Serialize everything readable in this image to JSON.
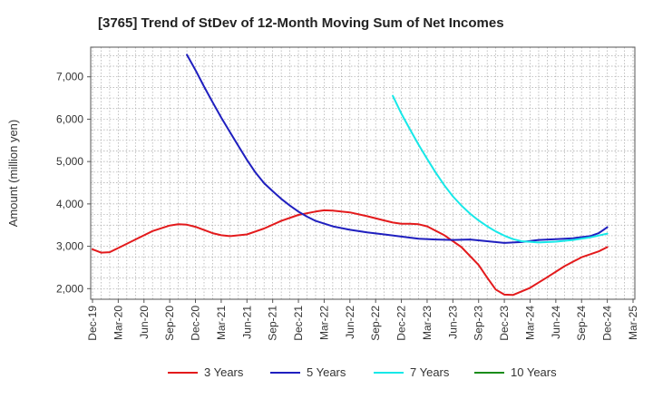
{
  "chart_data": {
    "type": "line",
    "title": "[3765]  Trend of StDev of 12-Month Moving Sum of Net Incomes",
    "xlabel": "",
    "ylabel": "Amount (million yen)",
    "x_tick_labels": [
      "Dec-19",
      "Mar-20",
      "Jun-20",
      "Sep-20",
      "Dec-20",
      "Mar-21",
      "Jun-21",
      "Sep-21",
      "Dec-21",
      "Mar-22",
      "Jun-22",
      "Sep-22",
      "Dec-22",
      "Mar-23",
      "Jun-23",
      "Sep-23",
      "Dec-23",
      "Mar-24",
      "Jun-24",
      "Sep-24",
      "Dec-24",
      "Mar-25"
    ],
    "y_ticks": [
      2000,
      3000,
      4000,
      5000,
      6000,
      7000
    ],
    "y_tick_labels": [
      "2,000",
      "3,000",
      "4,000",
      "5,000",
      "6,000",
      "7,000"
    ],
    "ylim": [
      1750,
      7700
    ],
    "grid": true,
    "legend_position": "bottom",
    "series": [
      {
        "name": "3 Years",
        "color": "#e31a1c",
        "x": [
          "2019-12",
          "2020-01",
          "2020-02",
          "2020-03",
          "2020-05",
          "2020-07",
          "2020-09",
          "2020-10",
          "2020-11",
          "2020-12",
          "2021-02",
          "2021-03",
          "2021-04",
          "2021-06",
          "2021-08",
          "2021-10",
          "2021-12",
          "2022-02",
          "2022-03",
          "2022-04",
          "2022-06",
          "2022-08",
          "2022-10",
          "2022-11",
          "2022-12",
          "2023-01",
          "2023-02",
          "2023-03",
          "2023-05",
          "2023-07",
          "2023-09",
          "2023-10",
          "2023-11",
          "2023-12",
          "2024-01",
          "2024-03",
          "2024-05",
          "2024-07",
          "2024-09",
          "2024-11",
          "2024-12"
        ],
        "values": [
          2930,
          2850,
          2860,
          2960,
          3160,
          3360,
          3490,
          3520,
          3510,
          3460,
          3310,
          3260,
          3240,
          3280,
          3420,
          3600,
          3740,
          3820,
          3850,
          3840,
          3800,
          3710,
          3610,
          3560,
          3530,
          3530,
          3520,
          3470,
          3260,
          2980,
          2560,
          2260,
          1980,
          1860,
          1850,
          2020,
          2270,
          2530,
          2740,
          2880,
          2980
        ]
      },
      {
        "name": "5 Years",
        "color": "#1f1fbf",
        "x": [
          "2020-11",
          "2020-12",
          "2021-01",
          "2021-02",
          "2021-03",
          "2021-04",
          "2021-05",
          "2021-06",
          "2021-07",
          "2021-08",
          "2021-09",
          "2021-10",
          "2021-11",
          "2021-12",
          "2022-01",
          "2022-02",
          "2022-04",
          "2022-06",
          "2022-08",
          "2022-10",
          "2022-12",
          "2023-02",
          "2023-04",
          "2023-06",
          "2023-08",
          "2023-10",
          "2023-12",
          "2024-02",
          "2024-04",
          "2024-06",
          "2024-08",
          "2024-10",
          "2024-11",
          "2024-12"
        ],
        "values": [
          7520,
          7160,
          6770,
          6400,
          6040,
          5700,
          5370,
          5040,
          4740,
          4490,
          4300,
          4120,
          3960,
          3820,
          3700,
          3600,
          3470,
          3390,
          3330,
          3280,
          3230,
          3180,
          3160,
          3150,
          3160,
          3120,
          3080,
          3100,
          3150,
          3170,
          3190,
          3240,
          3310,
          3450
        ]
      },
      {
        "name": "7 Years",
        "color": "#17e8e8",
        "x": [
          "2022-11",
          "2022-12",
          "2023-01",
          "2023-02",
          "2023-03",
          "2023-04",
          "2023-05",
          "2023-06",
          "2023-07",
          "2023-08",
          "2023-09",
          "2023-10",
          "2023-11",
          "2023-12",
          "2024-01",
          "2024-02",
          "2024-04",
          "2024-06",
          "2024-08",
          "2024-10",
          "2024-12"
        ],
        "values": [
          6550,
          6130,
          5760,
          5400,
          5060,
          4740,
          4440,
          4180,
          3960,
          3770,
          3610,
          3470,
          3350,
          3250,
          3170,
          3120,
          3090,
          3110,
          3150,
          3210,
          3300
        ]
      },
      {
        "name": "10 Years",
        "color": "#1a8c1a",
        "x": [],
        "values": []
      }
    ]
  }
}
